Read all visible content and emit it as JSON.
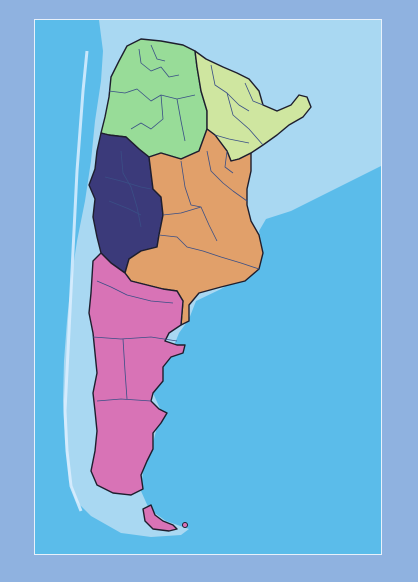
{
  "map": {
    "colors": {
      "page_background": "#8fb2e0",
      "ocean": "#5bbcea",
      "shelf_and_land_outside": "#a9d8f2",
      "frame_border": "#e8f1fb"
    },
    "regions": [
      {
        "id": "northwest",
        "color": "#98dc98"
      },
      {
        "id": "northeast",
        "color": "#cfe6a0"
      },
      {
        "id": "cuyo",
        "color": "#3b3a7a"
      },
      {
        "id": "pampas",
        "color": "#e1a06a"
      },
      {
        "id": "patagonia",
        "color": "#d873b6"
      }
    ]
  }
}
